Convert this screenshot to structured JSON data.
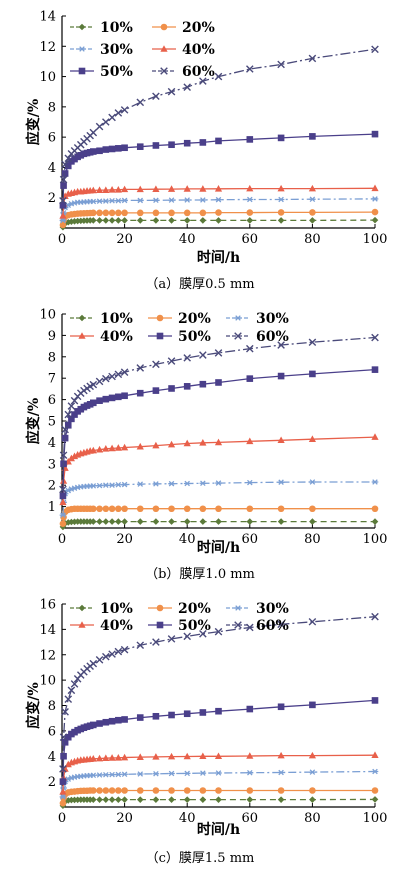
{
  "chart_data": [
    {
      "type": "line",
      "caption": "（a）膜厚0.5 mm",
      "xlabel": "时间/h",
      "ylabel": "应变/%",
      "xlim": [
        0,
        100
      ],
      "ylim": [
        0,
        14
      ],
      "xticks": [
        0,
        20,
        40,
        60,
        80,
        100
      ],
      "yticks": [
        2,
        4,
        6,
        8,
        10,
        12,
        14
      ],
      "legend_rows": [
        [
          "10%",
          "20%"
        ],
        [
          "30%",
          "40%"
        ],
        [
          "50%",
          "60%"
        ]
      ],
      "x": [
        0.3,
        0.5,
        1,
        2,
        3,
        4,
        5,
        6,
        7,
        8,
        9,
        10,
        12,
        14,
        16,
        18,
        20,
        25,
        30,
        35,
        40,
        45,
        50,
        60,
        70,
        80,
        100
      ],
      "series": [
        {
          "name": "10%",
          "color": "#5b7a3a",
          "marker": "diamond",
          "dash": "6 4",
          "values": [
            0.05,
            0.2,
            0.3,
            0.38,
            0.42,
            0.44,
            0.46,
            0.47,
            0.48,
            0.49,
            0.5,
            0.5,
            0.5,
            0.5,
            0.5,
            0.5,
            0.5,
            0.5,
            0.5,
            0.5,
            0.5,
            0.5,
            0.5,
            0.5,
            0.5,
            0.5,
            0.52
          ]
        },
        {
          "name": "20%",
          "color": "#f0904a",
          "marker": "circle",
          "dash": "",
          "values": [
            0.2,
            0.5,
            0.75,
            0.85,
            0.9,
            0.92,
            0.95,
            0.96,
            0.97,
            0.98,
            0.99,
            1.0,
            1.0,
            1.0,
            1.0,
            1.0,
            1.0,
            1.0,
            1.0,
            1.0,
            1.0,
            1.0,
            1.02,
            1.02,
            1.03,
            1.03,
            1.05
          ]
        },
        {
          "name": "30%",
          "color": "#7b9fd4",
          "marker": "asterisk",
          "dash": "8 3 2 3",
          "values": [
            0.5,
            1.0,
            1.35,
            1.5,
            1.6,
            1.65,
            1.7,
            1.7,
            1.72,
            1.73,
            1.75,
            1.75,
            1.77,
            1.78,
            1.8,
            1.8,
            1.82,
            1.82,
            1.83,
            1.84,
            1.85,
            1.85,
            1.87,
            1.88,
            1.88,
            1.9,
            1.92
          ]
        },
        {
          "name": "40%",
          "color": "#e8604a",
          "marker": "triangle",
          "dash": "",
          "values": [
            0.8,
            1.6,
            2.1,
            2.25,
            2.3,
            2.35,
            2.4,
            2.4,
            2.42,
            2.45,
            2.46,
            2.48,
            2.5,
            2.5,
            2.52,
            2.52,
            2.55,
            2.55,
            2.56,
            2.57,
            2.58,
            2.58,
            2.59,
            2.6,
            2.6,
            2.6,
            2.62
          ]
        },
        {
          "name": "50%",
          "color": "#4a3f8a",
          "marker": "square",
          "dash": "",
          "values": [
            1.5,
            2.8,
            3.6,
            4.1,
            4.4,
            4.55,
            4.7,
            4.8,
            4.9,
            4.95,
            5.0,
            5.05,
            5.1,
            5.18,
            5.22,
            5.26,
            5.3,
            5.37,
            5.45,
            5.5,
            5.6,
            5.65,
            5.75,
            5.85,
            5.95,
            6.05,
            6.2
          ]
        },
        {
          "name": "60%",
          "color": "#4a4a7a",
          "marker": "x",
          "dash": "10 3 2 3",
          "values": [
            1.8,
            3.2,
            4.2,
            4.6,
            4.9,
            5.1,
            5.3,
            5.5,
            5.7,
            5.9,
            6.1,
            6.3,
            6.7,
            7.0,
            7.3,
            7.6,
            7.8,
            8.3,
            8.7,
            9.0,
            9.3,
            9.7,
            10.0,
            10.5,
            10.8,
            11.2,
            11.8
          ]
        }
      ]
    },
    {
      "type": "line",
      "caption": "（b）膜厚1.0 mm",
      "xlabel": "时间/h",
      "ylabel": "应变/%",
      "xlim": [
        0,
        100
      ],
      "ylim": [
        0,
        10
      ],
      "xticks": [
        0,
        20,
        40,
        60,
        80,
        100
      ],
      "yticks": [
        1,
        2,
        3,
        4,
        5,
        6,
        7,
        8,
        9,
        10
      ],
      "legend_rows": [
        [
          "10%",
          "20%",
          "30%"
        ],
        [
          "40%",
          "50%",
          "60%"
        ]
      ],
      "x": [
        0.3,
        0.5,
        1,
        2,
        3,
        4,
        5,
        6,
        7,
        8,
        9,
        10,
        12,
        14,
        16,
        18,
        20,
        25,
        30,
        35,
        40,
        45,
        50,
        60,
        70,
        80,
        100
      ],
      "series": [
        {
          "name": "10%",
          "color": "#5b7a3a",
          "marker": "diamond",
          "dash": "6 4",
          "values": [
            0.05,
            0.15,
            0.22,
            0.26,
            0.28,
            0.29,
            0.3,
            0.3,
            0.3,
            0.3,
            0.3,
            0.3,
            0.3,
            0.3,
            0.3,
            0.3,
            0.3,
            0.3,
            0.3,
            0.3,
            0.3,
            0.3,
            0.3,
            0.3,
            0.3,
            0.3,
            0.3
          ]
        },
        {
          "name": "20%",
          "color": "#f0904a",
          "marker": "circle",
          "dash": "",
          "values": [
            0.2,
            0.5,
            0.75,
            0.85,
            0.88,
            0.9,
            0.9,
            0.9,
            0.9,
            0.9,
            0.9,
            0.9,
            0.9,
            0.9,
            0.9,
            0.9,
            0.9,
            0.9,
            0.9,
            0.9,
            0.9,
            0.9,
            0.9,
            0.9,
            0.9,
            0.9,
            0.9
          ]
        },
        {
          "name": "30%",
          "color": "#7b9fd4",
          "marker": "asterisk",
          "dash": "8 3 2 3",
          "values": [
            0.6,
            1.2,
            1.6,
            1.75,
            1.82,
            1.86,
            1.9,
            1.92,
            1.94,
            1.95,
            1.96,
            1.97,
            1.98,
            2.0,
            2.0,
            2.02,
            2.03,
            2.05,
            2.06,
            2.07,
            2.08,
            2.09,
            2.1,
            2.12,
            2.14,
            2.15,
            2.15
          ]
        },
        {
          "name": "40%",
          "color": "#e8604a",
          "marker": "triangle",
          "dash": "",
          "values": [
            1.2,
            2.2,
            2.8,
            3.1,
            3.25,
            3.35,
            3.42,
            3.48,
            3.52,
            3.56,
            3.6,
            3.62,
            3.66,
            3.7,
            3.72,
            3.74,
            3.76,
            3.8,
            3.85,
            3.9,
            3.95,
            3.98,
            4.0,
            4.05,
            4.1,
            4.15,
            4.25
          ]
        },
        {
          "name": "50%",
          "color": "#4a3f8a",
          "marker": "square",
          "dash": "",
          "values": [
            1.5,
            3.0,
            4.2,
            4.8,
            5.1,
            5.3,
            5.45,
            5.55,
            5.65,
            5.72,
            5.78,
            5.85,
            5.95,
            6.02,
            6.08,
            6.13,
            6.18,
            6.3,
            6.42,
            6.52,
            6.62,
            6.72,
            6.8,
            6.98,
            7.1,
            7.2,
            7.4
          ]
        },
        {
          "name": "60%",
          "color": "#4a4a7a",
          "marker": "x",
          "dash": "10 3 2 3",
          "values": [
            1.8,
            3.4,
            4.6,
            5.3,
            5.7,
            5.95,
            6.15,
            6.3,
            6.42,
            6.52,
            6.62,
            6.7,
            6.85,
            6.98,
            7.08,
            7.18,
            7.28,
            7.48,
            7.65,
            7.8,
            7.95,
            8.08,
            8.18,
            8.38,
            8.55,
            8.68,
            8.9
          ]
        }
      ]
    },
    {
      "type": "line",
      "caption": "（c）膜厚1.5 mm",
      "xlabel": "时间/h",
      "ylabel": "应变/%",
      "xlim": [
        0,
        100
      ],
      "ylim": [
        0,
        16
      ],
      "xticks": [
        0,
        20,
        40,
        60,
        80,
        100
      ],
      "yticks": [
        2,
        4,
        6,
        8,
        10,
        12,
        14,
        16
      ],
      "legend_rows": [
        [
          "10%",
          "20%",
          "30%"
        ],
        [
          "40%",
          "50%",
          "60%"
        ]
      ],
      "x": [
        0.3,
        0.5,
        1,
        2,
        3,
        4,
        5,
        6,
        7,
        8,
        9,
        10,
        12,
        14,
        16,
        18,
        20,
        25,
        30,
        35,
        40,
        45,
        50,
        60,
        70,
        80,
        100
      ],
      "series": [
        {
          "name": "10%",
          "color": "#5b7a3a",
          "marker": "diamond",
          "dash": "6 4",
          "values": [
            0.1,
            0.3,
            0.45,
            0.52,
            0.55,
            0.56,
            0.57,
            0.58,
            0.58,
            0.58,
            0.58,
            0.58,
            0.58,
            0.58,
            0.58,
            0.58,
            0.58,
            0.58,
            0.58,
            0.58,
            0.58,
            0.58,
            0.58,
            0.58,
            0.58,
            0.58,
            0.6
          ]
        },
        {
          "name": "20%",
          "color": "#f0904a",
          "marker": "circle",
          "dash": "",
          "values": [
            0.3,
            0.7,
            1.0,
            1.15,
            1.2,
            1.22,
            1.25,
            1.27,
            1.28,
            1.28,
            1.3,
            1.3,
            1.3,
            1.3,
            1.3,
            1.3,
            1.3,
            1.3,
            1.3,
            1.3,
            1.3,
            1.3,
            1.3,
            1.3,
            1.3,
            1.3,
            1.3
          ]
        },
        {
          "name": "30%",
          "color": "#7b9fd4",
          "marker": "asterisk",
          "dash": "8 3 2 3",
          "values": [
            0.8,
            1.5,
            2.0,
            2.2,
            2.3,
            2.35,
            2.4,
            2.42,
            2.45,
            2.47,
            2.48,
            2.5,
            2.52,
            2.54,
            2.55,
            2.56,
            2.58,
            2.6,
            2.62,
            2.64,
            2.65,
            2.67,
            2.68,
            2.7,
            2.72,
            2.75,
            2.8
          ]
        },
        {
          "name": "40%",
          "color": "#e8604a",
          "marker": "triangle",
          "dash": "",
          "values": [
            1.2,
            2.3,
            3.0,
            3.35,
            3.5,
            3.58,
            3.65,
            3.7,
            3.72,
            3.75,
            3.77,
            3.8,
            3.82,
            3.85,
            3.87,
            3.88,
            3.9,
            3.93,
            3.95,
            3.97,
            3.98,
            4.0,
            4.0,
            4.02,
            4.05,
            4.05,
            4.08
          ]
        },
        {
          "name": "50%",
          "color": "#4a3f8a",
          "marker": "square",
          "dash": "",
          "values": [
            2.0,
            4.0,
            5.1,
            5.5,
            5.75,
            5.9,
            6.05,
            6.15,
            6.25,
            6.33,
            6.4,
            6.47,
            6.58,
            6.68,
            6.76,
            6.84,
            6.9,
            7.05,
            7.15,
            7.25,
            7.35,
            7.45,
            7.55,
            7.72,
            7.9,
            8.05,
            8.4
          ]
        },
        {
          "name": "60%",
          "color": "#4a4a7a",
          "marker": "x",
          "dash": "10 3 2 3",
          "values": [
            3.0,
            5.5,
            7.5,
            8.5,
            9.2,
            9.7,
            10.1,
            10.4,
            10.65,
            10.9,
            11.1,
            11.3,
            11.6,
            11.85,
            12.05,
            12.25,
            12.4,
            12.75,
            13.0,
            13.25,
            13.45,
            13.65,
            13.82,
            14.15,
            14.4,
            14.6,
            15.0
          ]
        }
      ]
    }
  ]
}
